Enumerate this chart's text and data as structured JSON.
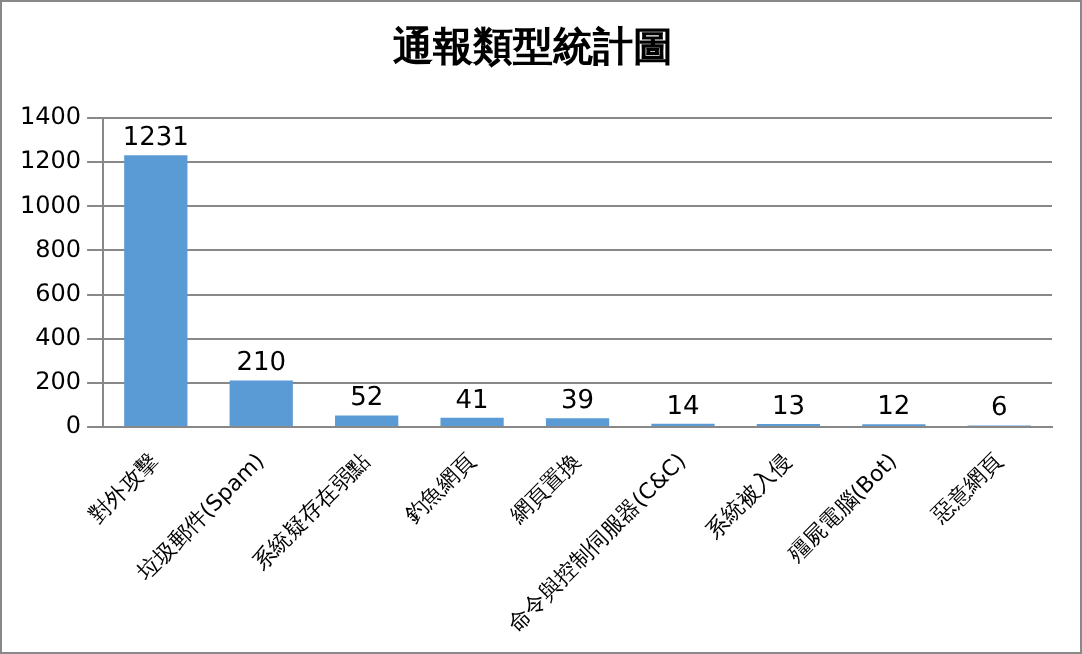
{
  "chart_data": {
    "type": "bar",
    "title": "通報類型統計圖",
    "categories": [
      "對外攻擊",
      "垃圾郵件(Spam)",
      "系統疑存在弱點",
      "釣魚網頁",
      "網頁置換",
      "命令與控制伺服器(C&C)",
      "系統被入侵",
      "殭屍電腦(Bot)",
      "惡意網頁"
    ],
    "values": [
      1231,
      210,
      52,
      41,
      39,
      14,
      13,
      12,
      6
    ],
    "color": "#5b9bd5",
    "ylim": [
      0,
      1400
    ],
    "yticks": [
      0,
      200,
      400,
      600,
      800,
      1000,
      1200,
      1400
    ],
    "grid": "y",
    "data_labels": true,
    "legend": false
  }
}
